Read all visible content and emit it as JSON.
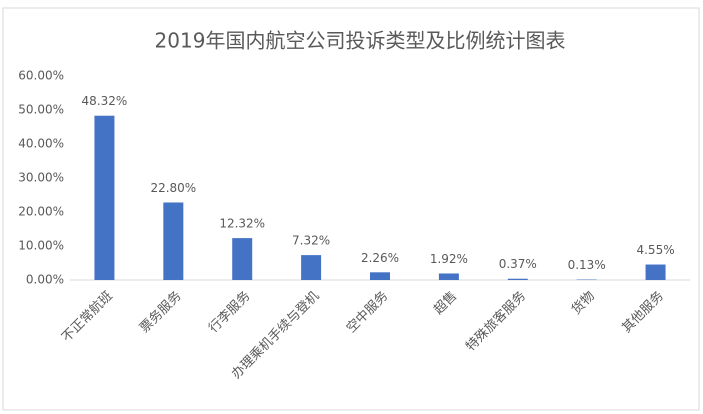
{
  "chart_data": {
    "type": "bar",
    "title": "2019年国内航空公司投诉类型及比例统计图表",
    "categories": [
      "不正常航班",
      "票务服务",
      "行李服务",
      "办理乘机手续与登机",
      "空中服务",
      "超售",
      "特殊旅客服务",
      "货物",
      "其他服务"
    ],
    "values": [
      48.32,
      22.8,
      12.32,
      7.32,
      2.26,
      1.92,
      0.37,
      0.13,
      4.55
    ],
    "value_labels": [
      "48.32%",
      "22.80%",
      "12.32%",
      "7.32%",
      "2.26%",
      "1.92%",
      "0.37%",
      "0.13%",
      "4.55%"
    ],
    "color": "#4472c4",
    "ylim": [
      0,
      60
    ],
    "yticks": [
      {
        "value": 0,
        "label": "0.00%"
      },
      {
        "value": 10,
        "label": "10.00%"
      },
      {
        "value": 20,
        "label": "20.00%"
      },
      {
        "value": 30,
        "label": "30.00%"
      },
      {
        "value": 40,
        "label": "40.00%"
      },
      {
        "value": 50,
        "label": "50.00%"
      },
      {
        "value": 60,
        "label": "60.00%"
      }
    ],
    "grid": false
  }
}
